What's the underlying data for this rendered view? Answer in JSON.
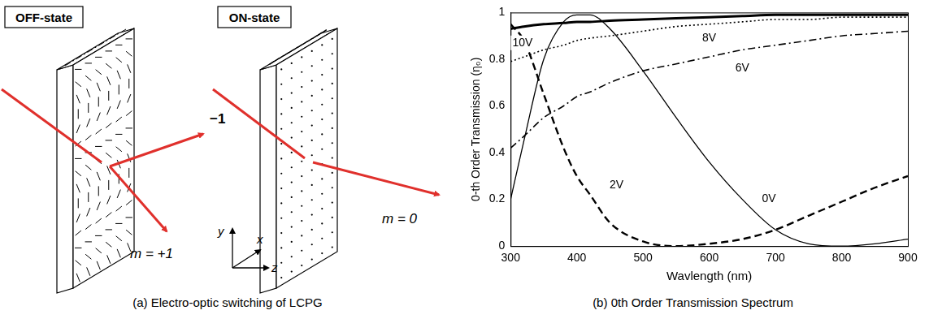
{
  "diagram": {
    "off_state": "OFF-state",
    "on_state": "ON-state",
    "minus_one": "−1",
    "plus_one": "m = +1",
    "zero": "m = 0",
    "axes": [
      "x",
      "y",
      "z"
    ],
    "caption": "(a) Electro-optic switching of LCPG"
  },
  "chart_data": {
    "type": "line",
    "caption": "(b) 0th Order Transmission Spectrum",
    "x_label": "Wavlength (nm)",
    "y_label": "0-th Order Transmission (η₀)",
    "xlim": [
      300,
      900
    ],
    "xticks": [
      300,
      400,
      500,
      600,
      700,
      800,
      900
    ],
    "ylim": [
      0,
      1
    ],
    "yticks": [
      0,
      0.2,
      0.4,
      0.6,
      0.8,
      1
    ],
    "grid": false,
    "x": [
      300,
      320,
      350,
      380,
      400,
      420,
      450,
      500,
      550,
      600,
      650,
      700,
      750,
      800,
      850,
      900
    ],
    "series": [
      {
        "name": "0V",
        "color": "#000000",
        "line_style": "solid",
        "values": [
          0.2,
          0.45,
          0.8,
          0.96,
          0.99,
          0.99,
          0.93,
          0.75,
          0.55,
          0.36,
          0.2,
          0.07,
          0.01,
          0.0,
          0.01,
          0.03
        ]
      },
      {
        "name": "2V",
        "color": "#000000",
        "line_style": "dashed",
        "values": [
          0.95,
          0.88,
          0.65,
          0.42,
          0.3,
          0.22,
          0.1,
          0.02,
          0.0,
          0.01,
          0.03,
          0.07,
          0.13,
          0.19,
          0.25,
          0.3
        ]
      },
      {
        "name": "6V",
        "color": "#000000",
        "line_style": "dashdot",
        "values": [
          0.42,
          0.47,
          0.55,
          0.6,
          0.64,
          0.66,
          0.7,
          0.75,
          0.78,
          0.81,
          0.84,
          0.86,
          0.88,
          0.9,
          0.91,
          0.92
        ]
      },
      {
        "name": "8V",
        "color": "#000000",
        "line_style": "dotted",
        "values": [
          0.79,
          0.81,
          0.84,
          0.86,
          0.88,
          0.89,
          0.9,
          0.92,
          0.94,
          0.95,
          0.96,
          0.97,
          0.97,
          0.98,
          0.98,
          0.98
        ]
      },
      {
        "name": "10V",
        "color": "#000000",
        "line_style": "solid",
        "values": [
          0.93,
          0.94,
          0.95,
          0.955,
          0.96,
          0.96,
          0.965,
          0.97,
          0.975,
          0.98,
          0.985,
          0.99,
          0.99,
          0.99,
          0.99,
          0.99
        ]
      }
    ],
    "annotations": [
      {
        "text": "10V",
        "x": 318,
        "y": 0.87
      },
      {
        "text": "8V",
        "x": 600,
        "y": 0.89
      },
      {
        "text": "6V",
        "x": 650,
        "y": 0.76
      },
      {
        "text": "2V",
        "x": 460,
        "y": 0.26
      },
      {
        "text": "0V",
        "x": 690,
        "y": 0.2
      }
    ]
  }
}
